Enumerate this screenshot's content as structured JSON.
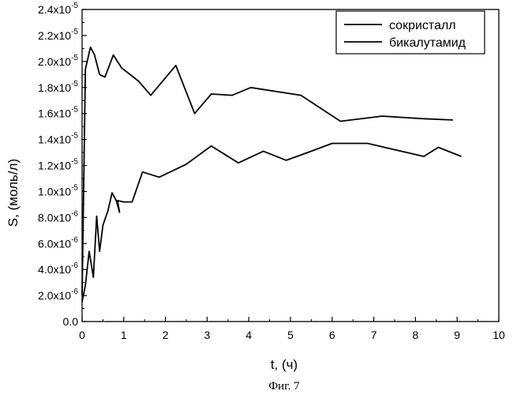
{
  "chart_data": {
    "type": "line",
    "title": "",
    "caption": "Фиг. 7",
    "xlabel": "t, (ч)",
    "ylabel": "S, (моль/л)",
    "xlim": [
      0,
      10
    ],
    "ylim": [
      0,
      2.4e-05
    ],
    "grid": false,
    "legend_position": "top-right",
    "x_ticks": [
      0,
      1,
      2,
      3,
      4,
      5,
      6,
      7,
      8,
      9,
      10
    ],
    "x_tick_labels": [
      "0",
      "1",
      "2",
      "3",
      "4",
      "5",
      "6",
      "7",
      "8",
      "9",
      "10"
    ],
    "y_ticks": [
      0,
      2e-06,
      4e-06,
      6e-06,
      8e-06,
      1e-05,
      1.2e-05,
      1.4e-05,
      1.6e-05,
      1.8e-05,
      2e-05,
      2.2e-05,
      2.4e-05
    ],
    "y_tick_labels": [
      {
        "mantissa": "0.0",
        "exponent": ""
      },
      {
        "mantissa": "2.0x10",
        "exponent": "-6"
      },
      {
        "mantissa": "4.0x10",
        "exponent": "-6"
      },
      {
        "mantissa": "6.0x10",
        "exponent": "-6"
      },
      {
        "mantissa": "8.0x10",
        "exponent": "-6"
      },
      {
        "mantissa": "1.0x10",
        "exponent": "-5"
      },
      {
        "mantissa": "1.2x10",
        "exponent": "-5"
      },
      {
        "mantissa": "1.4x10",
        "exponent": "-5"
      },
      {
        "mantissa": "1.6x10",
        "exponent": "-5"
      },
      {
        "mantissa": "1.8x10",
        "exponent": "-5"
      },
      {
        "mantissa": "2.0x10",
        "exponent": "-5"
      },
      {
        "mantissa": "2.2x10",
        "exponent": "-5"
      },
      {
        "mantissa": "2.4x10",
        "exponent": "-5"
      }
    ],
    "series": [
      {
        "name": "сокристалл",
        "color": "#000000",
        "x": [
          0,
          0.08,
          0.2,
          0.3,
          0.42,
          0.55,
          0.75,
          0.95,
          1.35,
          1.65,
          2.25,
          2.7,
          3.1,
          3.6,
          4.05,
          5.25,
          6.2,
          7.2,
          8.2,
          8.9
        ],
        "y": [
          2e-06,
          1.94e-05,
          2.11e-05,
          2.05e-05,
          1.9e-05,
          1.88e-05,
          2.05e-05,
          1.95e-05,
          1.85e-05,
          1.74e-05,
          1.97e-05,
          1.6e-05,
          1.75e-05,
          1.74e-05,
          1.8e-05,
          1.74e-05,
          1.54e-05,
          1.58e-05,
          1.56e-05,
          1.55e-05
        ]
      },
      {
        "name": "бикалутамид",
        "color": "#000000",
        "x": [
          0,
          0.08,
          0.17,
          0.27,
          0.35,
          0.42,
          0.5,
          0.62,
          0.72,
          0.82,
          0.9,
          0.85,
          1.0,
          1.2,
          1.45,
          1.85,
          2.5,
          3.1,
          3.75,
          4.35,
          4.9,
          5.5,
          6.0,
          6.85,
          8.2,
          8.55,
          9.1
        ],
        "y": [
          1.5e-06,
          2.8e-06,
          5.4e-06,
          3.4e-06,
          8.1e-06,
          5.4e-06,
          7.4e-06,
          8.5e-06,
          9.9e-06,
          9.3e-06,
          8.4e-06,
          9.3e-06,
          9.2e-06,
          9.2e-06,
          1.15e-05,
          1.11e-05,
          1.21e-05,
          1.35e-05,
          1.22e-05,
          1.31e-05,
          1.24e-05,
          1.31e-05,
          1.37e-05,
          1.37e-05,
          1.27e-05,
          1.34e-05,
          1.27e-05
        ]
      }
    ]
  }
}
